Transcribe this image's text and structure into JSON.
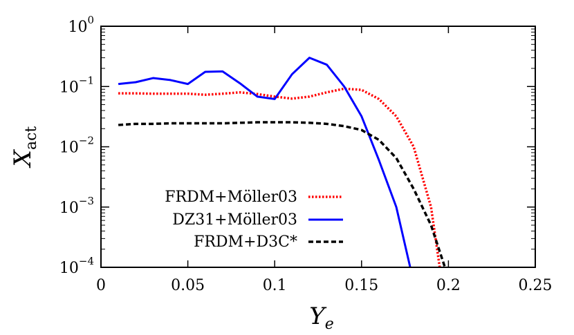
{
  "chart_data": {
    "type": "line",
    "xlabel": {
      "base": "Y",
      "sub": "e"
    },
    "ylabel": {
      "base": "X",
      "sub": "act"
    },
    "xlim": [
      0,
      0.25
    ],
    "ylim": [
      0.0001,
      1
    ],
    "yscale": "log",
    "x_ticks": [
      0,
      0.05,
      0.1,
      0.15,
      0.2,
      0.25
    ],
    "x_tick_labels": [
      "0",
      "0.05",
      "0.1",
      "0.15",
      "0.2",
      "0.25"
    ],
    "y_ticks": [
      {
        "value": 1,
        "base": "10",
        "exp": "0"
      },
      {
        "value": 0.1,
        "base": "10",
        "exp": "−1"
      },
      {
        "value": 0.01,
        "base": "10",
        "exp": "−2"
      },
      {
        "value": 0.001,
        "base": "10",
        "exp": "−3"
      },
      {
        "value": 0.0001,
        "base": "10",
        "exp": "−4"
      }
    ],
    "grid": false,
    "legend_position": "bottom-left",
    "series": [
      {
        "name": "FRDM+Möller03",
        "color": "#ff0000",
        "style": "dotted",
        "x": [
          0.01,
          0.02,
          0.03,
          0.04,
          0.05,
          0.06,
          0.07,
          0.08,
          0.09,
          0.1,
          0.11,
          0.12,
          0.13,
          0.14,
          0.15,
          0.16,
          0.17,
          0.18,
          0.19,
          0.195
        ],
        "y": [
          0.077,
          0.077,
          0.076,
          0.076,
          0.076,
          0.073,
          0.076,
          0.08,
          0.075,
          0.068,
          0.063,
          0.068,
          0.08,
          0.092,
          0.088,
          0.062,
          0.032,
          0.01,
          0.001,
          0.0001
        ]
      },
      {
        "name": "DZ31+Möller03",
        "color": "#0000ff",
        "style": "solid",
        "x": [
          0.01,
          0.02,
          0.03,
          0.04,
          0.05,
          0.06,
          0.07,
          0.08,
          0.09,
          0.1,
          0.11,
          0.12,
          0.13,
          0.14,
          0.15,
          0.16,
          0.17,
          0.178
        ],
        "y": [
          0.11,
          0.118,
          0.138,
          0.128,
          0.11,
          0.175,
          0.178,
          0.113,
          0.068,
          0.062,
          0.16,
          0.3,
          0.23,
          0.1,
          0.032,
          0.006,
          0.001,
          0.0001
        ]
      },
      {
        "name": "FRDM+D3C*",
        "color": "#000000",
        "style": "dashed",
        "x": [
          0.01,
          0.02,
          0.03,
          0.04,
          0.05,
          0.06,
          0.07,
          0.08,
          0.09,
          0.1,
          0.11,
          0.12,
          0.13,
          0.14,
          0.15,
          0.16,
          0.17,
          0.18,
          0.19,
          0.198
        ],
        "y": [
          0.023,
          0.024,
          0.024,
          0.0245,
          0.0245,
          0.0245,
          0.0245,
          0.025,
          0.0255,
          0.0255,
          0.0255,
          0.025,
          0.024,
          0.022,
          0.019,
          0.013,
          0.0065,
          0.002,
          0.0005,
          0.0001
        ]
      }
    ]
  }
}
